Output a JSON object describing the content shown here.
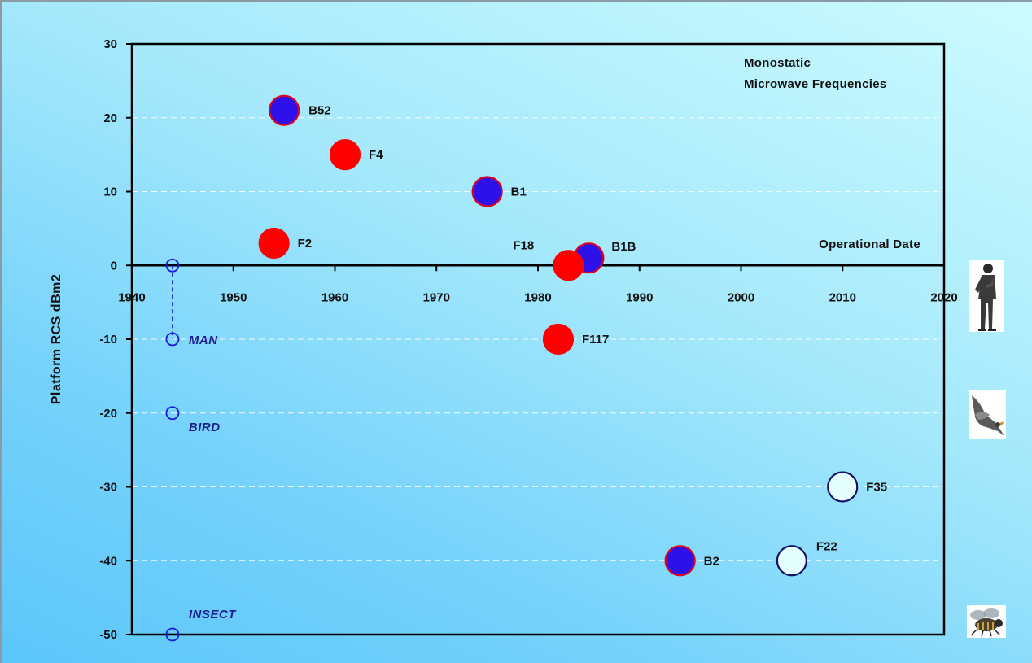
{
  "chart_data": {
    "type": "scatter",
    "title": "",
    "xlabel": "Operational Date",
    "ylabel": "Platform RCS dBm2",
    "xlim": [
      1940,
      2020
    ],
    "ylim": [
      -50,
      30
    ],
    "x_ticks": [
      "1940",
      "1950",
      "1960",
      "1970",
      "1980",
      "1990",
      "2000",
      "2010",
      "2020"
    ],
    "y_ticks": [
      "30",
      "20",
      "10",
      "0",
      "-10",
      "-20",
      "-30",
      "-40",
      "-50"
    ],
    "grid": true,
    "annotation_lines": [
      "Monostatic",
      "Microwave Frequencies"
    ],
    "points": [
      {
        "label": "B52",
        "x": 1955,
        "y": 21,
        "fill": "#2e10e8",
        "stroke": "#e0001c"
      },
      {
        "label": "F4",
        "x": 1961,
        "y": 15,
        "fill": "#ff0000",
        "stroke": "#ff0000"
      },
      {
        "label": "B1",
        "x": 1975,
        "y": 10,
        "fill": "#2e10e8",
        "stroke": "#e0001c"
      },
      {
        "label": "F2",
        "x": 1954,
        "y": 3,
        "fill": "#ff0000",
        "stroke": "#ff0000"
      },
      {
        "label": "B1B",
        "x": 1985,
        "y": 1,
        "fill": "#2e10e8",
        "stroke": "#e0001c"
      },
      {
        "label": "F18",
        "x": 1983,
        "y": 0,
        "fill": "#ff0000",
        "stroke": "#ff0000"
      },
      {
        "label": "F117",
        "x": 1982,
        "y": -10,
        "fill": "#ff0000",
        "stroke": "#ff0000"
      },
      {
        "label": "F35",
        "x": 2010,
        "y": -30,
        "fill": "#e4fffd",
        "stroke": "#10106a"
      },
      {
        "label": "B2",
        "x": 1994,
        "y": -40,
        "fill": "#2e10e8",
        "stroke": "#e0001c"
      },
      {
        "label": "F22",
        "x": 2005,
        "y": -40,
        "fill": "#e4fffd",
        "stroke": "#10106a"
      }
    ],
    "reference_points": [
      {
        "x": 1944,
        "y": 0,
        "label": ""
      },
      {
        "x": 1944,
        "y": -10,
        "label": "MAN"
      },
      {
        "x": 1944,
        "y": -20,
        "label": "BIRD"
      },
      {
        "x": 1944,
        "y": -50,
        "label": "INSECT"
      }
    ],
    "reference_color": "#1a1ad8",
    "reference_text_color": "#1a2090"
  },
  "pictures": [
    {
      "name": "man-icon",
      "near_value": -10
    },
    {
      "name": "bird-icon",
      "near_value": -20
    },
    {
      "name": "insect-icon",
      "near_value": -50
    }
  ]
}
